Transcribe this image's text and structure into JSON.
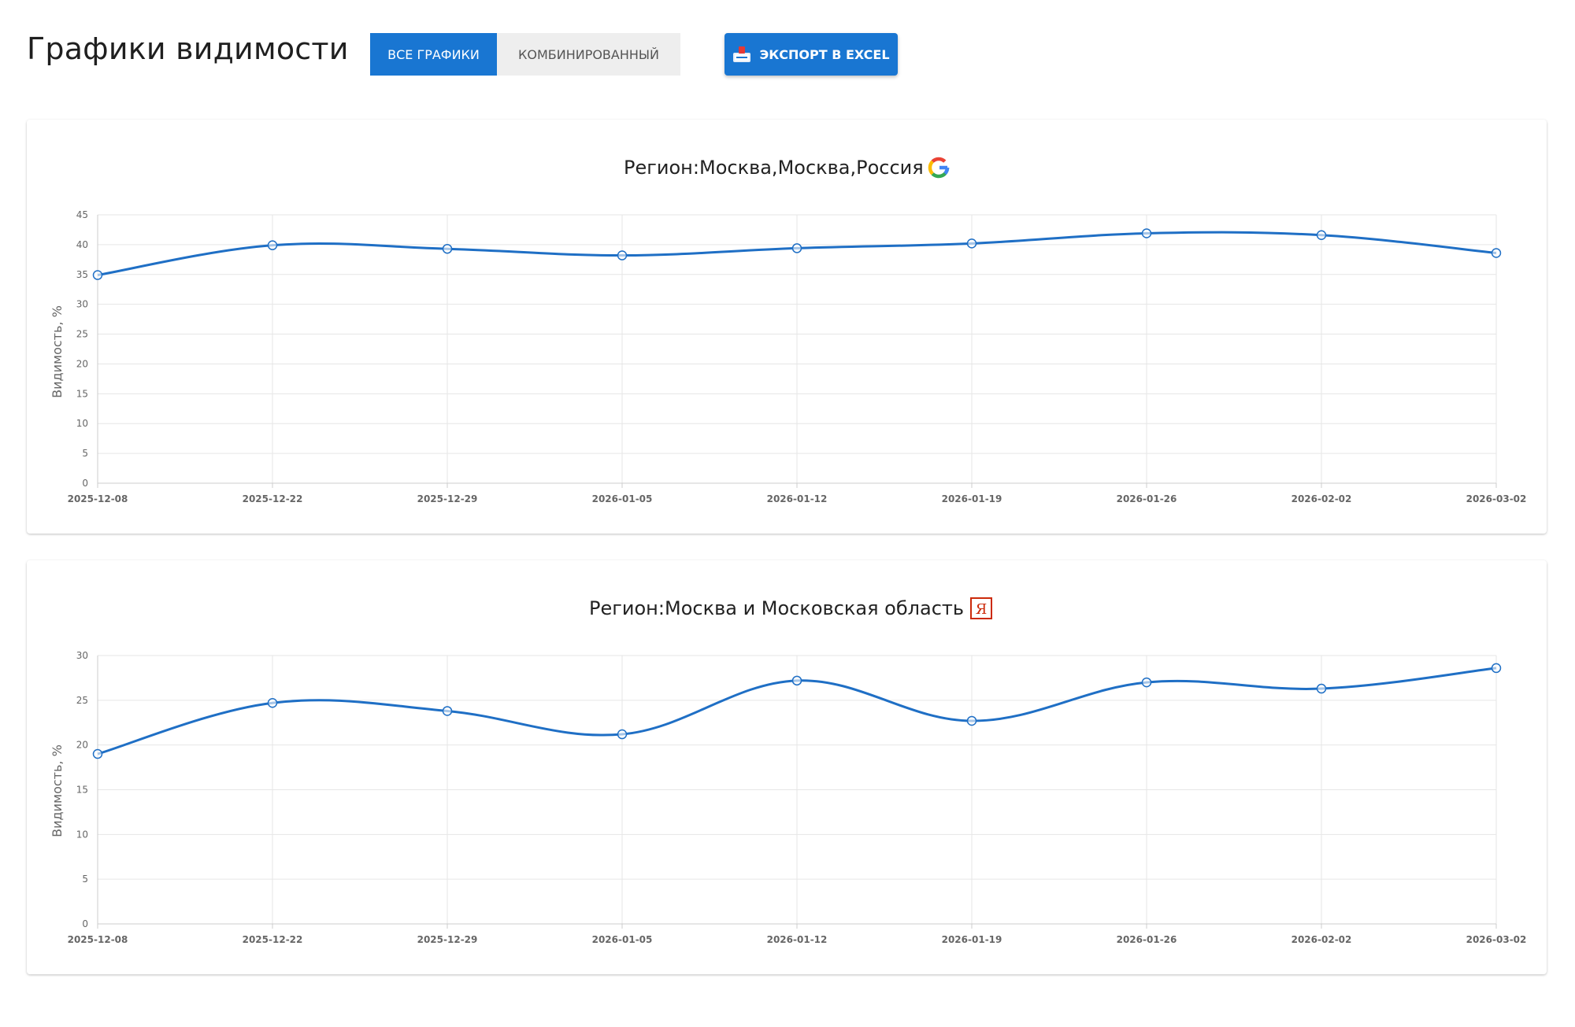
{
  "header": {
    "title": "Графики видимости",
    "tabs": [
      {
        "label": "Все графики",
        "active": true
      },
      {
        "label": "Комбинированный",
        "active": false
      }
    ],
    "export_label": "Экспорт в Excel",
    "export_icon": "excel-export-icon"
  },
  "colors": {
    "accent": "#1976d2",
    "line": "#1f6fc5",
    "yandex": "#cc2a0a"
  },
  "chart_data": [
    {
      "type": "line",
      "title_prefix": "Регион:",
      "title": "Москва,Москва,Россия",
      "engine_icon": "google-icon",
      "ylabel": "Видимость, %",
      "xlabel": "",
      "x": [
        "2025-12-08",
        "2025-12-22",
        "2025-12-29",
        "2026-01-05",
        "2026-01-12",
        "2026-01-19",
        "2026-01-26",
        "2026-02-02",
        "2026-03-02"
      ],
      "values": [
        34.9,
        39.9,
        39.3,
        38.2,
        39.4,
        40.2,
        41.9,
        41.6,
        38.6
      ],
      "ylim": [
        0,
        45
      ],
      "yticks": [
        0,
        5,
        10,
        15,
        20,
        25,
        30,
        35,
        40,
        45
      ],
      "grid": true
    },
    {
      "type": "line",
      "title_prefix": "Регион:",
      "title": "Москва и Московская область",
      "engine_icon": "yandex-icon",
      "engine_glyph": "Я",
      "ylabel": "Видимость, %",
      "xlabel": "",
      "x": [
        "2025-12-08",
        "2025-12-22",
        "2025-12-29",
        "2026-01-05",
        "2026-01-12",
        "2026-01-19",
        "2026-01-26",
        "2026-02-02",
        "2026-03-02"
      ],
      "values": [
        19.0,
        24.7,
        23.8,
        21.2,
        27.2,
        22.7,
        27.0,
        26.3,
        28.6
      ],
      "ylim": [
        0,
        30
      ],
      "yticks": [
        0,
        5,
        10,
        15,
        20,
        25,
        30
      ],
      "grid": true
    }
  ]
}
